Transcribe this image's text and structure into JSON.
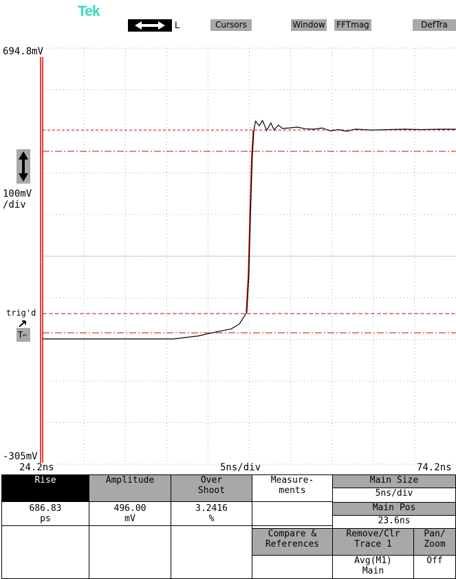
{
  "header": {
    "logo": "Tek",
    "timebase_mode": "L",
    "menu": [
      "Cursors",
      "Window",
      "FFTmag",
      "DefTra"
    ]
  },
  "scope": {
    "top_level": "694.8mV",
    "bottom_level": "-305mV",
    "vert_scale_value": "100mV",
    "vert_scale_unit": "/div",
    "trigger_status": "trig'd",
    "trigger_marker": "T",
    "time_start": "24.2ns",
    "time_scale": "5ns/div",
    "time_end": "74.2ns",
    "colors": {
      "trace": "#000000",
      "reference": "#e00000",
      "grid": "#a0a0a0",
      "menu_gray": "#a8a8a8"
    }
  },
  "chart_data": {
    "type": "line",
    "x_range_ns": [
      24.2,
      74.2
    ],
    "y_range_mV": [
      -305,
      694.8
    ],
    "series": [
      {
        "x_ns": [
          24.2,
          40,
          43,
          45,
          47,
          48,
          48.9,
          49.15,
          49.35,
          49.55,
          49.75,
          49.95,
          50.4,
          50.8,
          51.3,
          51.8,
          52.2,
          52.7,
          53.2,
          54,
          55,
          56,
          57,
          58,
          59,
          60,
          61,
          62,
          64,
          66,
          68,
          70,
          72,
          74.2
        ],
        "y_mV": [
          -4,
          -4,
          3,
          12,
          20,
          32,
          60,
          150,
          300,
          430,
          497,
          519,
          508,
          521,
          497,
          515,
          498,
          510,
          502,
          503,
          505,
          501,
          500,
          503,
          496,
          499,
          495,
          500,
          498,
          499,
          500,
          499,
          500,
          500
        ]
      }
    ]
  },
  "measurements": {
    "headers": [
      "Rise",
      "Amplitude",
      "Over Shoot",
      "Measure-ments"
    ],
    "values": [
      "686.83",
      "496.00",
      "3.2416"
    ],
    "units": [
      "ps",
      "mV",
      "%"
    ],
    "main_size_label": "Main Size",
    "main_size_value": "5ns/div",
    "main_pos_label": "Main Pos",
    "main_pos_value": "23.6ns",
    "compare_label": "Compare & References",
    "remove_label": "Remove/Clr Trace 1",
    "remove_value": "Avg(M1) Main",
    "pan_label": "Pan/ Zoom",
    "pan_value": "Off"
  }
}
